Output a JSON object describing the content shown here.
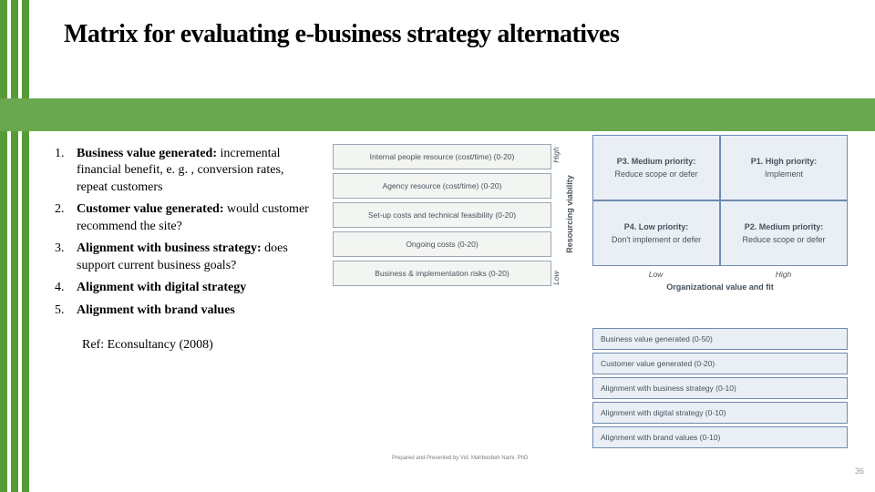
{
  "colors": {
    "stripe": "#569a35",
    "band": "#6aa84f",
    "res_border": "#9aa7b5",
    "res_bg": "#f3f5f2",
    "pg_border": "#6e8bb0",
    "pg_bg": "#eaeff6",
    "muted_text": "#47525c"
  },
  "title": "Matrix for evaluating e-business strategy alternatives",
  "list": [
    {
      "n": "1.",
      "bold": "Business value generated:",
      "rest": " incremental financial benefit, e. g. , conversion rates, repeat customers"
    },
    {
      "n": "2.",
      "bold": "Customer value generated:",
      "rest": " would customer recommend the site?"
    },
    {
      "n": "3.",
      "bold": "Alignment with business strategy:",
      "rest": " does support current business goals?"
    },
    {
      "n": "4.",
      "bold": "Alignment with digital strategy",
      "rest": ""
    },
    {
      "n": "5.",
      "bold": "Alignment with brand values",
      "rest": ""
    }
  ],
  "ref": "Ref: Econsultancy (2008)",
  "resource_rows": [
    "Internal people resource (cost/time) (0-20)",
    "Agency resource (cost/time) (0-20)",
    "Set-up costs and technical feasibility (0-20)",
    "Ongoing costs (0-20)",
    "Business & implementation risks (0-20)"
  ],
  "res_y_axis_title": "Resourcing viability",
  "res_y_high": "High",
  "res_y_low": "Low",
  "priority": {
    "cells": [
      [
        {
          "h": "P3. Medium priority:",
          "b": "Reduce scope or defer"
        },
        {
          "h": "P1. High priority:",
          "b": "Implement"
        }
      ],
      [
        {
          "h": "P4. Low priority:",
          "b": "Don't implement or defer"
        },
        {
          "h": "P2. Medium priority:",
          "b": "Reduce scope or defer"
        }
      ]
    ],
    "x_low": "Low",
    "x_high": "High",
    "x_title": "Organizational value and fit"
  },
  "orgval_rows": [
    "Business value generated (0-50)",
    "Customer value generated (0-20)",
    "Alignment with business strategy (0-10)",
    "Alignment with digital strategy (0-10)",
    "Alignment with brand values (0-10)"
  ],
  "footer_tiny": "Prepared and Presented by Vid. Mahboobeh Nami, PhD",
  "page_num": "36"
}
